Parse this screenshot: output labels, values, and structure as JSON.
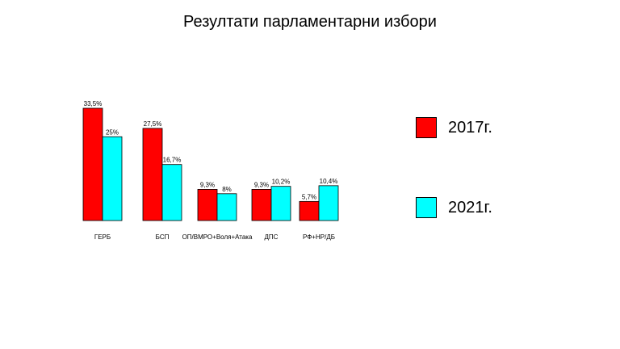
{
  "chart_data": {
    "type": "bar",
    "title": "Резултати парламентарни избори",
    "categories": [
      "ГЕРБ",
      "БСП",
      "ОП/ВМРО+Воля+Атака",
      "ДПС",
      "РФ+НР/ДБ"
    ],
    "series": [
      {
        "name": "2017г.",
        "color": "#ff0000",
        "values": [
          33.5,
          27.5,
          9.3,
          9.3,
          5.7
        ],
        "labels": [
          "33,5%",
          "27,5%",
          "9,3%",
          "9,3%",
          "5,7%"
        ]
      },
      {
        "name": "2021г.",
        "color": "#00ffff",
        "values": [
          25,
          16.7,
          8,
          10.2,
          10.4
        ],
        "labels": [
          "25%",
          "16,7%",
          "8%",
          "10,2%",
          "10,4%"
        ]
      }
    ],
    "xlabel": "",
    "ylabel": "",
    "ylim": [
      0,
      33.5
    ],
    "grid": false,
    "legend": "right"
  }
}
